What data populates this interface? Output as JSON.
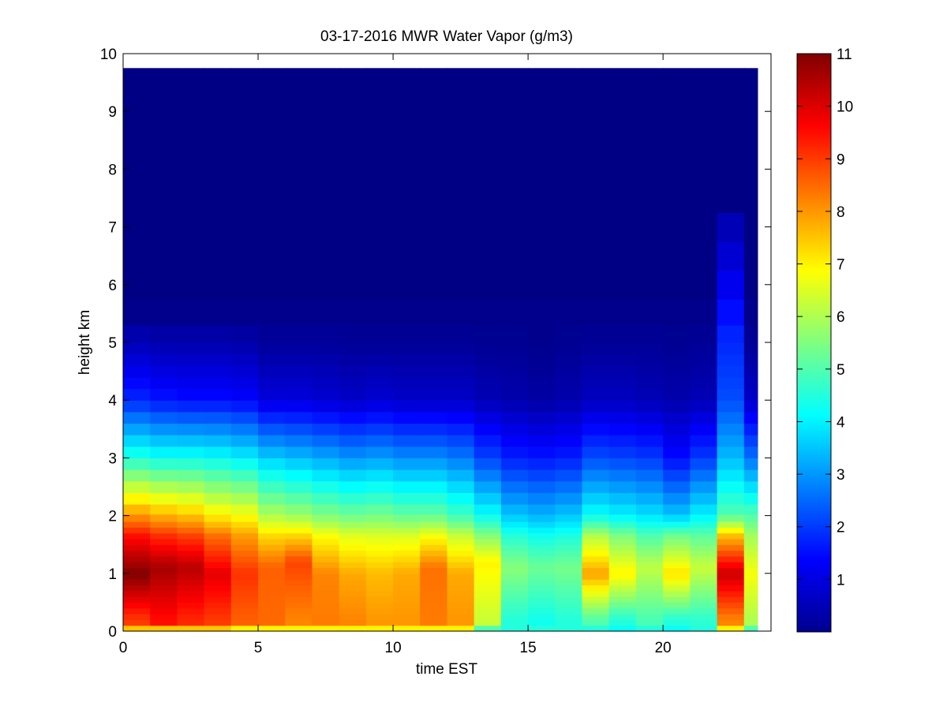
{
  "chart_data": {
    "type": "heatmap",
    "title": "03-17-2016 MWR Water Vapor (g/m3)",
    "xlabel": "time EST",
    "ylabel": "height km",
    "xlim": [
      0,
      24
    ],
    "ylim": [
      0,
      10
    ],
    "data_extent": {
      "x": [
        0,
        23.5
      ],
      "y": [
        0,
        9.75
      ]
    },
    "xticks": [
      0,
      5,
      10,
      15,
      20
    ],
    "yticks": [
      0,
      1,
      2,
      3,
      4,
      5,
      6,
      7,
      8,
      9,
      10
    ],
    "colorbar": {
      "ticks": [
        1,
        2,
        3,
        4,
        5,
        6,
        7,
        8,
        9,
        10,
        11
      ],
      "range": [
        0,
        11
      ],
      "colormap": "jet"
    },
    "heights_km": [
      0.05,
      0.15,
      0.25,
      0.35,
      0.45,
      0.55,
      0.65,
      0.75,
      0.85,
      0.95,
      1.05,
      1.15,
      1.25,
      1.35,
      1.45,
      1.55,
      1.65,
      1.75,
      1.85,
      1.95,
      2.1,
      2.3,
      2.5,
      2.7,
      2.9,
      3.1,
      3.3,
      3.5,
      3.7,
      3.9,
      4.1,
      4.3,
      4.5,
      4.7,
      4.9,
      5.1,
      5.5,
      6.0,
      6.5,
      7.0,
      7.5,
      8.5,
      9.5
    ],
    "times_hr": [
      0,
      1,
      2,
      3,
      4,
      5,
      6,
      7,
      8,
      9,
      10,
      11,
      12,
      13,
      14,
      15,
      16,
      17,
      18,
      19,
      20,
      21,
      22,
      23
    ],
    "profiles": [
      {
        "time": 0,
        "lowest": 7.5,
        "surface": 9.0,
        "peak": 11.0,
        "peak_h": 1.0,
        "at2": 8.0,
        "at3": 4.5,
        "at4": 1.8,
        "at5": 0.6,
        "top": 0.05
      },
      {
        "time": 1,
        "lowest": 7.5,
        "surface": 9.5,
        "peak": 10.6,
        "peak_h": 1.1,
        "at2": 7.7,
        "at3": 4.3,
        "at4": 1.6,
        "at5": 0.5,
        "top": 0.05
      },
      {
        "time": 2,
        "lowest": 7.5,
        "surface": 9.2,
        "peak": 10.4,
        "peak_h": 1.1,
        "at2": 7.5,
        "at3": 4.3,
        "at4": 1.5,
        "at5": 0.5,
        "top": 0.05
      },
      {
        "time": 3,
        "lowest": 7.5,
        "surface": 9.0,
        "peak": 9.9,
        "peak_h": 1.0,
        "at2": 7.0,
        "at3": 4.2,
        "at4": 1.5,
        "at5": 0.5,
        "top": 0.05
      },
      {
        "time": 4,
        "lowest": 7.0,
        "surface": 8.6,
        "peak": 9.1,
        "peak_h": 1.0,
        "at2": 6.8,
        "at3": 4.0,
        "at4": 1.4,
        "at5": 0.45,
        "top": 0.05
      },
      {
        "time": 5,
        "lowest": 7.0,
        "surface": 8.5,
        "peak": 8.6,
        "peak_h": 1.1,
        "at2": 6.0,
        "at3": 3.6,
        "at4": 1.0,
        "at5": 0.3,
        "top": 0.05
      },
      {
        "time": 6,
        "lowest": 7.0,
        "surface": 8.2,
        "peak": 8.9,
        "peak_h": 1.2,
        "at2": 5.8,
        "at3": 3.4,
        "at4": 1.0,
        "at5": 0.3,
        "top": 0.05
      },
      {
        "time": 7,
        "lowest": 7.0,
        "surface": 8.3,
        "peak": 8.2,
        "peak_h": 1.0,
        "at2": 5.5,
        "at3": 3.2,
        "at4": 0.9,
        "at5": 0.3,
        "top": 0.05
      },
      {
        "time": 8,
        "lowest": 7.0,
        "surface": 8.2,
        "peak": 7.8,
        "peak_h": 1.0,
        "at2": 5.3,
        "at3": 3.0,
        "at4": 0.8,
        "at5": 0.25,
        "top": 0.05
      },
      {
        "time": 9,
        "lowest": 7.0,
        "surface": 8.0,
        "peak": 7.6,
        "peak_h": 1.0,
        "at2": 5.4,
        "at3": 3.1,
        "at4": 0.9,
        "at5": 0.25,
        "top": 0.05
      },
      {
        "time": 10,
        "lowest": 7.0,
        "surface": 8.0,
        "peak": 7.8,
        "peak_h": 1.0,
        "at2": 5.2,
        "at3": 2.9,
        "at4": 0.8,
        "at5": 0.25,
        "top": 0.05
      },
      {
        "time": 11,
        "lowest": 7.0,
        "surface": 8.3,
        "peak": 8.4,
        "peak_h": 1.1,
        "at2": 5.2,
        "at3": 2.9,
        "at4": 0.8,
        "at5": 0.25,
        "top": 0.05
      },
      {
        "time": 12,
        "lowest": 7.0,
        "surface": 8.0,
        "peak": 7.8,
        "peak_h": 1.0,
        "at2": 4.8,
        "at3": 2.7,
        "at4": 0.8,
        "at5": 0.25,
        "top": 0.05
      },
      {
        "time": 13,
        "lowest": 5.0,
        "surface": 6.3,
        "peak": 7.0,
        "peak_h": 1.2,
        "at2": 4.2,
        "at3": 2.1,
        "at4": 0.6,
        "at5": 0.2,
        "top": 0.05
      },
      {
        "time": 14,
        "lowest": 4.5,
        "surface": 4.5,
        "peak": 5.6,
        "peak_h": 1.1,
        "at2": 3.5,
        "at3": 1.7,
        "at4": 0.5,
        "at5": 0.2,
        "top": 0.05
      },
      {
        "time": 15,
        "lowest": 4.5,
        "surface": 4.3,
        "peak": 5.3,
        "peak_h": 1.1,
        "at2": 3.3,
        "at3": 1.6,
        "at4": 0.4,
        "at5": 0.15,
        "top": 0.05
      },
      {
        "time": 16,
        "lowest": 4.5,
        "surface": 4.5,
        "peak": 5.4,
        "peak_h": 1.1,
        "at2": 3.5,
        "at3": 1.7,
        "at4": 0.5,
        "at5": 0.2,
        "top": 0.05
      },
      {
        "time": 17,
        "lowest": 4.5,
        "surface": 5.0,
        "peak": 7.9,
        "peak_h": 1.0,
        "at2": 4.2,
        "at3": 2.2,
        "at4": 0.7,
        "at5": 0.25,
        "top": 0.05
      },
      {
        "time": 18,
        "lowest": 4.2,
        "surface": 4.5,
        "peak": 7.0,
        "peak_h": 1.0,
        "at2": 4.0,
        "at3": 2.1,
        "at4": 0.7,
        "at5": 0.25,
        "top": 0.05
      },
      {
        "time": 19,
        "lowest": 4.5,
        "surface": 4.9,
        "peak": 6.2,
        "peak_h": 1.1,
        "at2": 3.8,
        "at3": 2.0,
        "at4": 0.6,
        "at5": 0.25,
        "top": 0.05
      },
      {
        "time": 20,
        "lowest": 4.2,
        "surface": 4.5,
        "peak": 7.2,
        "peak_h": 1.0,
        "at2": 3.5,
        "at3": 1.5,
        "at4": 0.5,
        "at5": 0.2,
        "top": 0.05
      },
      {
        "time": 21,
        "lowest": 4.5,
        "surface": 4.6,
        "peak": 6.3,
        "peak_h": 1.1,
        "at2": 4.0,
        "at3": 2.0,
        "at4": 0.6,
        "at5": 0.25,
        "top": 0.05
      },
      {
        "time": 22,
        "lowest": 7.0,
        "surface": 8.2,
        "peak": 10.2,
        "peak_h": 1.0,
        "at2": 5.0,
        "at3": 3.4,
        "at4": 2.2,
        "at5": 1.8,
        "top": 0.05,
        "plume_top": 7.4
      },
      {
        "time": 23,
        "lowest": 5.0,
        "surface": 6.0,
        "peak": 6.8,
        "peak_h": 1.0,
        "at2": 5.0,
        "at3": 2.6,
        "at4": 0.8,
        "at5": 0.25,
        "top": 0.05
      }
    ]
  }
}
